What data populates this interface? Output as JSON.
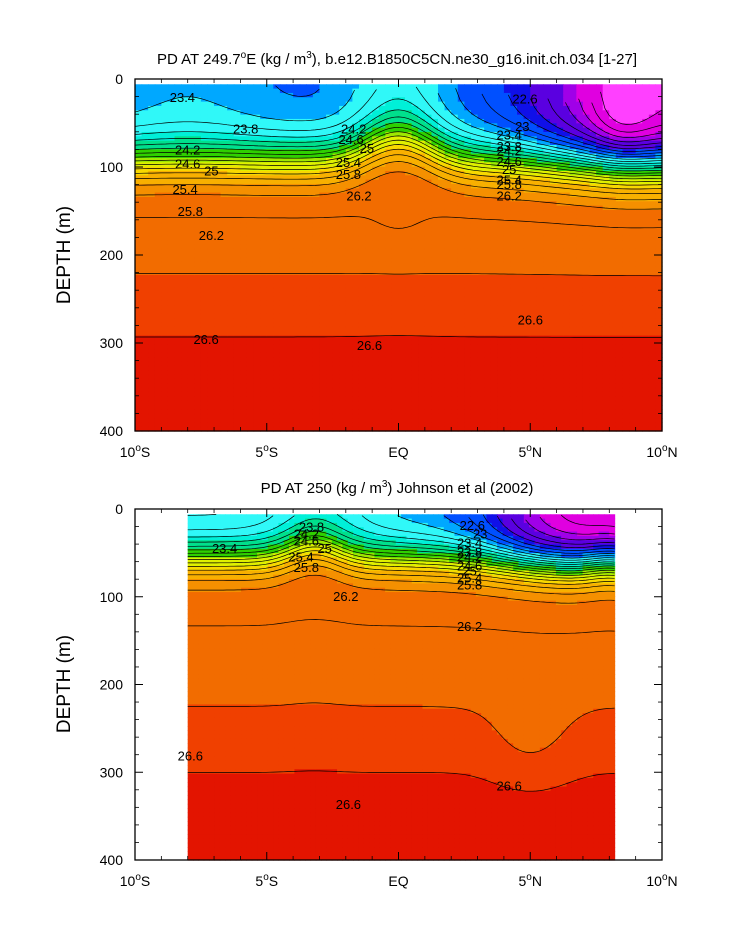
{
  "chart_data": [
    {
      "type": "heatmap",
      "title_prefix": "PD AT 249.7",
      "title_sup1": "o",
      "title_mid": "E (kg / m",
      "title_sup2": "3",
      "title_suffix": "), b.e12.B1850C5CN.ne30_g16.init.ch.034 [1-27]",
      "ylabel": "DEPTH (m)",
      "xlabel": "",
      "xlim": [
        -10,
        10
      ],
      "ylim": [
        400,
        0
      ],
      "x_ticks": [
        {
          "value": -10,
          "num": "10",
          "deg": "o",
          "hemi": "S"
        },
        {
          "value": -5,
          "num": "5",
          "deg": "o",
          "hemi": "S"
        },
        {
          "value": 0,
          "num": "EQ",
          "deg": "",
          "hemi": ""
        },
        {
          "value": 5,
          "num": "5",
          "deg": "o",
          "hemi": "N"
        },
        {
          "value": 10,
          "num": "10",
          "deg": "o",
          "hemi": "N"
        }
      ],
      "y_ticks": [
        "0",
        "100",
        "200",
        "300",
        "400"
      ],
      "data_x_range": [
        -10,
        10
      ],
      "contour_levels": [
        22.6,
        23.0,
        23.4,
        23.8,
        24.2,
        24.6,
        25.0,
        25.4,
        25.8,
        26.2,
        26.6
      ],
      "contour_labels": [
        {
          "text": "23.4",
          "x": -8.2,
          "y": 22
        },
        {
          "text": "23.8",
          "x": -5.8,
          "y": 58
        },
        {
          "text": "24.2",
          "x": -8.0,
          "y": 82
        },
        {
          "text": "24.6",
          "x": -8.0,
          "y": 98
        },
        {
          "text": "25",
          "x": -7.1,
          "y": 106
        },
        {
          "text": "25.4",
          "x": -8.1,
          "y": 127
        },
        {
          "text": "25.8",
          "x": -7.9,
          "y": 152
        },
        {
          "text": "26.2",
          "x": -7.1,
          "y": 179
        },
        {
          "text": "24.2",
          "x": -1.7,
          "y": 58
        },
        {
          "text": "24.6",
          "x": -1.8,
          "y": 70
        },
        {
          "text": "25",
          "x": -1.2,
          "y": 80
        },
        {
          "text": "25.4",
          "x": -1.9,
          "y": 96
        },
        {
          "text": "25.8",
          "x": -1.9,
          "y": 110
        },
        {
          "text": "26.2",
          "x": -1.5,
          "y": 134
        },
        {
          "text": "22.6",
          "x": 4.8,
          "y": 24
        },
        {
          "text": "23",
          "x": 4.7,
          "y": 55
        },
        {
          "text": "23.4",
          "x": 4.2,
          "y": 65
        },
        {
          "text": "23.8",
          "x": 4.2,
          "y": 78
        },
        {
          "text": "24.2",
          "x": 4.2,
          "y": 83
        },
        {
          "text": "24.6",
          "x": 4.2,
          "y": 95
        },
        {
          "text": "25",
          "x": 4.2,
          "y": 104
        },
        {
          "text": "25.4",
          "x": 4.2,
          "y": 116
        },
        {
          "text": "25.8",
          "x": 4.2,
          "y": 121
        },
        {
          "text": "26.2",
          "x": 4.2,
          "y": 134
        },
        {
          "text": "26.6",
          "x": -7.3,
          "y": 297
        },
        {
          "text": "26.6",
          "x": -1.1,
          "y": 304
        },
        {
          "text": "26.6",
          "x": 5.0,
          "y": 275
        }
      ]
    },
    {
      "type": "heatmap",
      "title_prefix": "PD AT 250 (kg / m",
      "title_sup1": "3",
      "title_mid": ") Johnson et al (2002)",
      "title_sup2": "",
      "title_suffix": "",
      "ylabel": "DEPTH (m)",
      "xlabel": "",
      "xlim": [
        -10,
        10
      ],
      "ylim": [
        400,
        0
      ],
      "x_ticks": [
        {
          "value": -10,
          "num": "10",
          "deg": "o",
          "hemi": "S"
        },
        {
          "value": -5,
          "num": "5",
          "deg": "o",
          "hemi": "S"
        },
        {
          "value": 0,
          "num": "EQ",
          "deg": "",
          "hemi": ""
        },
        {
          "value": 5,
          "num": "5",
          "deg": "o",
          "hemi": "N"
        },
        {
          "value": 10,
          "num": "10",
          "deg": "o",
          "hemi": "N"
        }
      ],
      "y_ticks": [
        "0",
        "100",
        "200",
        "300",
        "400"
      ],
      "data_x_range": [
        -8,
        8.2
      ],
      "contour_levels": [
        22.6,
        23.0,
        23.4,
        23.8,
        24.2,
        24.6,
        25.0,
        25.4,
        25.8,
        26.2,
        26.6
      ],
      "contour_labels": [
        {
          "text": "23.4",
          "x": -6.6,
          "y": 46
        },
        {
          "text": "23.8",
          "x": -3.3,
          "y": 22
        },
        {
          "text": "24.2",
          "x": -3.5,
          "y": 30
        },
        {
          "text": "24.6",
          "x": -3.5,
          "y": 38
        },
        {
          "text": "25",
          "x": -2.8,
          "y": 46
        },
        {
          "text": "25.4",
          "x": -3.7,
          "y": 56
        },
        {
          "text": "25.8",
          "x": -3.5,
          "y": 68
        },
        {
          "text": "26.2",
          "x": -2.0,
          "y": 101
        },
        {
          "text": "26.2",
          "x": 2.7,
          "y": 135
        },
        {
          "text": "22.6",
          "x": 2.8,
          "y": 20
        },
        {
          "text": "23",
          "x": 3.1,
          "y": 30
        },
        {
          "text": "23.4",
          "x": 2.7,
          "y": 40
        },
        {
          "text": "23.8",
          "x": 2.7,
          "y": 50
        },
        {
          "text": "24.2",
          "x": 2.7,
          "y": 56
        },
        {
          "text": "24.6",
          "x": 2.7,
          "y": 66
        },
        {
          "text": "25",
          "x": 2.7,
          "y": 72
        },
        {
          "text": "25.4",
          "x": 2.7,
          "y": 80
        },
        {
          "text": "25.8",
          "x": 2.7,
          "y": 88
        },
        {
          "text": "26.6",
          "x": -7.9,
          "y": 283
        },
        {
          "text": "26.6",
          "x": -1.9,
          "y": 338
        },
        {
          "text": "26.6",
          "x": 4.2,
          "y": 317
        }
      ]
    }
  ],
  "colors": {
    "c0": "#c50000",
    "c1": "#e31400",
    "c2": "#f04000",
    "c3": "#f26c00",
    "c4": "#f59000",
    "c5": "#f8b000",
    "c6": "#f8d800",
    "c7": "#e0f000",
    "c8": "#9ee800",
    "c9": "#2fd000",
    "c10": "#00e08c",
    "c11": "#00f0d8",
    "c12": "#30f8f8",
    "c13": "#00a8ff",
    "c14": "#0050ff",
    "c15": "#1010e8",
    "c16": "#5a00e0",
    "c17": "#a000e8",
    "c18": "#e000e0",
    "c19": "#ff40ff",
    "missing": "#c8c8c8"
  }
}
